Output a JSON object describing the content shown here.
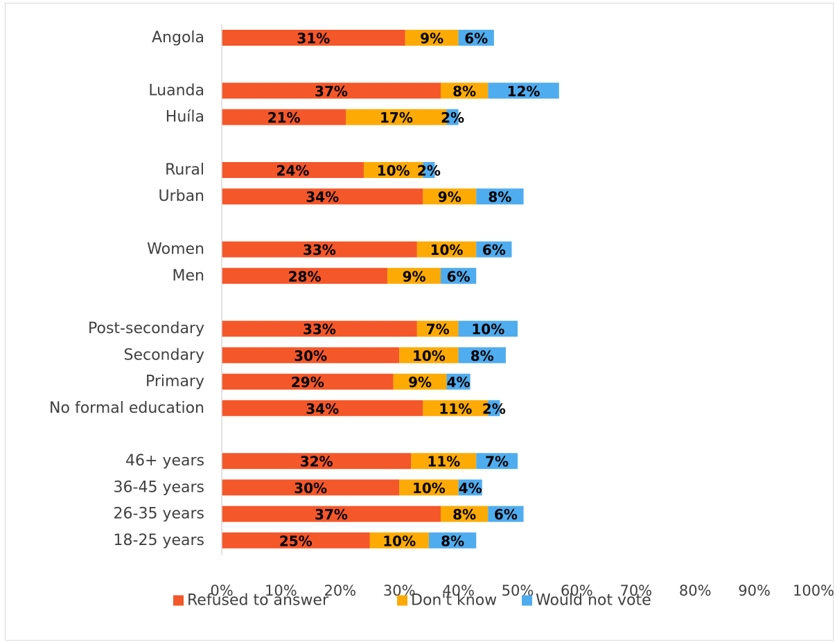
{
  "chart_data": {
    "type": "bar",
    "orientation": "horizontal",
    "stacked": true,
    "categories": [
      "Angola",
      "",
      "Luanda",
      "Huíla",
      "",
      "Rural",
      "Urban",
      "",
      "Women",
      "Men",
      "",
      "Post-secondary",
      "Secondary",
      "Primary",
      "No formal education",
      "",
      "46+ years",
      "36-45 years",
      "26-35 years",
      "18-25 years"
    ],
    "series": [
      {
        "name": "Refused to answer",
        "color": "#F4572A",
        "values": [
          31,
          null,
          37,
          21,
          null,
          24,
          34,
          null,
          33,
          28,
          null,
          33,
          30,
          29,
          34,
          null,
          32,
          30,
          37,
          25
        ]
      },
      {
        "name": "Don't know",
        "color": "#FDAA05",
        "values": [
          9,
          null,
          8,
          17,
          null,
          10,
          9,
          null,
          10,
          9,
          null,
          7,
          10,
          9,
          11,
          null,
          11,
          10,
          8,
          10
        ]
      },
      {
        "name": "Would not vote",
        "color": "#4FACEE",
        "values": [
          6,
          null,
          12,
          2,
          null,
          2,
          8,
          null,
          6,
          6,
          null,
          10,
          8,
          4,
          2,
          null,
          7,
          4,
          6,
          8
        ]
      }
    ],
    "xlim": [
      0,
      100
    ],
    "xticks": [
      "0%",
      "10%",
      "20%",
      "30%",
      "40%",
      "50%",
      "60%",
      "70%",
      "80%",
      "90%",
      "100%"
    ],
    "value_suffix": "%",
    "grid": false,
    "legend_position": "bottom"
  }
}
